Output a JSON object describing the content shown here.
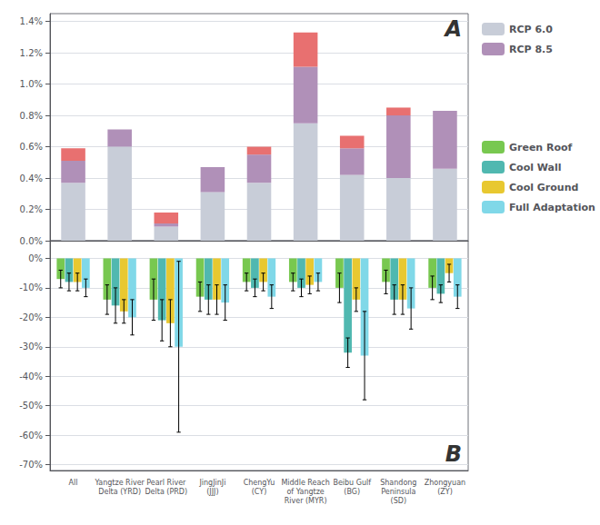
{
  "chart_data": [
    {
      "type": "bar",
      "stacked": true,
      "categories": [
        "All",
        "Yangtze River\nDelta (YRD)",
        "Pearl River\nDelta (PRD)",
        "JingJinJi\n(JJJ)",
        "ChengYu\n(CY)",
        "Middle Reach\nof Yangtze\nRiver (MYR)",
        "Beibu Gulf\n(BG)",
        "Shandong\nPeninsula\n(SD)",
        "Zhongyuan\n(ZY)"
      ],
      "series": [
        {
          "name": "RCP 6.0",
          "color": "#c8cdd8",
          "values": [
            0.0037,
            0.006,
            0.0009,
            0.0031,
            0.0037,
            0.0075,
            0.0042,
            0.004,
            0.0046
          ]
        },
        {
          "name": "RCP 8.5",
          "color": "#b090b8",
          "values": [
            0.0014,
            0.0011,
            0.0002,
            0.0016,
            0.0018,
            0.0036,
            0.0017,
            0.004,
            0.0037
          ]
        },
        {
          "color": "#e87070",
          "values": [
            0.0008,
            0.0,
            0.0007,
            0.0,
            0.0005,
            0.0022,
            0.0008,
            0.0005,
            0.0
          ]
        }
      ],
      "ylim": [
        0,
        0.0145
      ],
      "yticks": [
        {
          "value": 0.0,
          "label": "0.0%"
        },
        {
          "value": 0.002,
          "label": "0.2%"
        },
        {
          "value": 0.004,
          "label": "0.4%"
        },
        {
          "value": 0.006,
          "label": "0.6%"
        },
        {
          "value": 0.008,
          "label": "0.8%"
        },
        {
          "value": 0.01,
          "label": "1.0%"
        },
        {
          "value": 0.012,
          "label": "1.2%"
        },
        {
          "value": 0.014,
          "label": "1.4%"
        }
      ],
      "tick_labels": "y",
      "grid": true,
      "legend": "right",
      "annotations": [
        "A"
      ]
    },
    {
      "type": "bar",
      "categories": [
        "All",
        "Yangtze River\nDelta (YRD)",
        "Pearl River\nDelta (PRD)",
        "JingJinJi\n(JJJ)",
        "ChengYu\n(CY)",
        "Middle Reach\nof Yangtze\nRiver (MYR)",
        "Beibu Gulf\n(BG)",
        "Shandong\nPeninsula\n(SD)",
        "Zhongyuan\n(ZY)"
      ],
      "series": [
        {
          "name": "Green Roof",
          "color": "#78c850",
          "values": [
            -7,
            -14,
            -14,
            -13,
            -8,
            -8,
            -10,
            -8,
            -10
          ],
          "errors": [
            3,
            5,
            7,
            5,
            3,
            3,
            5,
            4,
            4
          ]
        },
        {
          "name": "Cool Wall",
          "color": "#50b8b0",
          "values": [
            -8,
            -16,
            -21,
            -14,
            -10,
            -10,
            -32,
            -14,
            -12
          ],
          "errors": [
            3,
            6,
            7,
            5,
            3,
            3,
            5,
            5,
            3
          ]
        },
        {
          "name": "Cool Ground",
          "color": "#e8c830",
          "values": [
            -8,
            -18,
            -22,
            -14,
            -8,
            -9,
            -14,
            -14,
            -5
          ],
          "errors": [
            3,
            4,
            8,
            5,
            3,
            3,
            4,
            5,
            3
          ]
        },
        {
          "name": "Full Adaptation",
          "color": "#80d8e8",
          "values": [
            -10,
            -20,
            -30,
            -15,
            -13,
            -8,
            -33,
            -17,
            -13
          ],
          "errors": [
            3,
            6,
            29,
            6,
            4,
            3,
            15,
            7,
            4
          ]
        }
      ],
      "ylim": [
        -72,
        6
      ],
      "yticks": [
        {
          "value": -70,
          "label": "-70%"
        },
        {
          "value": -60,
          "label": "-60%"
        },
        {
          "value": -50,
          "label": "-50%"
        },
        {
          "value": -40,
          "label": "-40%"
        },
        {
          "value": -30,
          "label": "-30%"
        },
        {
          "value": -20,
          "label": "-20%"
        },
        {
          "value": -10,
          "label": "-10%"
        },
        {
          "value": 0,
          "label": "0%"
        }
      ],
      "grid": true,
      "legend": "right",
      "annotations": [
        "B"
      ]
    }
  ]
}
